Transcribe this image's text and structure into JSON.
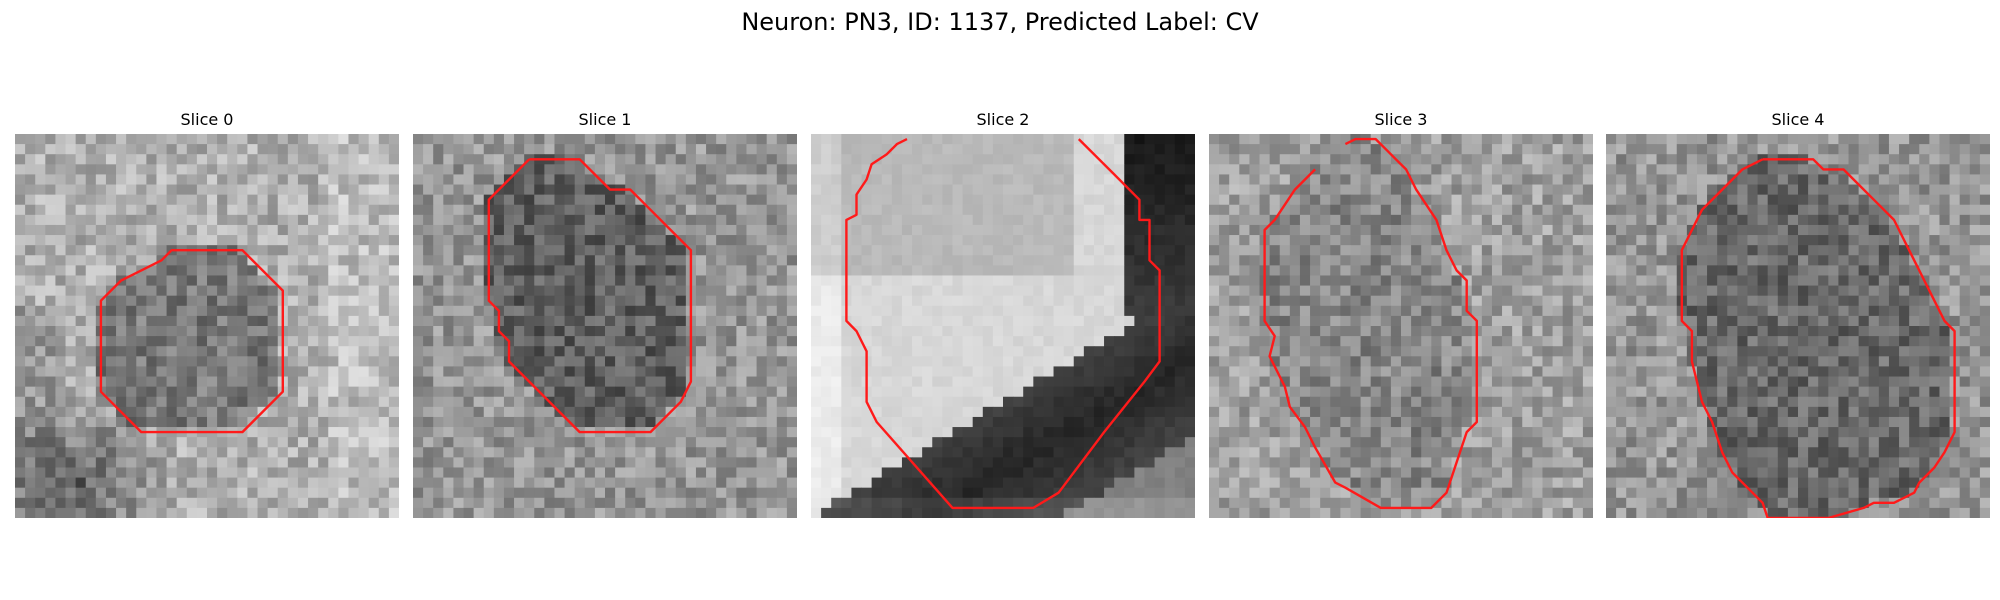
{
  "figure": {
    "title": "Neuron: PN3, ID: 1137, Predicted Label: CV"
  },
  "colors": {
    "outline": "#ff1a1a"
  },
  "panels": [
    {
      "title": "Slice 0",
      "seed": 11,
      "style": "slice0",
      "outline": [
        [
          17.5,
          11.5
        ],
        [
          22.5,
          11.5
        ],
        [
          26.5,
          15.5
        ],
        [
          26.5,
          25.5
        ],
        [
          22.5,
          29.5
        ],
        [
          12.5,
          29.5
        ],
        [
          8.5,
          25.5
        ],
        [
          8.5,
          16.5
        ],
        [
          10.5,
          14.5
        ],
        [
          12.5,
          13.5
        ],
        [
          14.5,
          12.5
        ],
        [
          15.5,
          11.5
        ]
      ]
    },
    {
      "title": "Slice 1",
      "seed": 23,
      "style": "slice1",
      "outline": [
        [
          11.5,
          2.5
        ],
        [
          16.5,
          2.5
        ],
        [
          18.5,
          4.5
        ],
        [
          19.5,
          5.5
        ],
        [
          21.5,
          5.5
        ],
        [
          23.5,
          7.5
        ],
        [
          26.5,
          10.5
        ],
        [
          27.5,
          11.5
        ],
        [
          27.5,
          24.5
        ],
        [
          26.5,
          26.5
        ],
        [
          23.5,
          29.5
        ],
        [
          16.5,
          29.5
        ],
        [
          12.5,
          25.5
        ],
        [
          9.5,
          22.5
        ],
        [
          9.5,
          20.5
        ],
        [
          8.5,
          19.5
        ],
        [
          8.5,
          17.5
        ],
        [
          7.5,
          16.5
        ],
        [
          7.5,
          6.5
        ]
      ]
    },
    {
      "title": "Slice 2",
      "seed": 37,
      "style": "slice2",
      "outline": [
        [
          9.5,
          0.5
        ],
        [
          8.5,
          1.0
        ],
        [
          7.5,
          2.0
        ],
        [
          6.0,
          3.0
        ],
        [
          5.5,
          4.5
        ],
        [
          4.5,
          6.0
        ],
        [
          4.5,
          8.0
        ],
        [
          3.5,
          8.5
        ],
        [
          3.5,
          18.5
        ],
        [
          4.5,
          19.5
        ],
        [
          5.5,
          21.5
        ],
        [
          5.5,
          26.5
        ],
        [
          6.5,
          28.5
        ],
        [
          14.0,
          37.0
        ],
        [
          16.0,
          37.0
        ],
        [
          22.0,
          37.0
        ],
        [
          24.5,
          35.5
        ],
        [
          29.0,
          29.5
        ],
        [
          33.0,
          24.5
        ],
        [
          34.5,
          22.5
        ],
        [
          34.5,
          13.5
        ],
        [
          33.5,
          12.5
        ],
        [
          33.5,
          8.5
        ],
        [
          32.5,
          8.5
        ],
        [
          32.5,
          6.5
        ],
        [
          30.0,
          4.0
        ],
        [
          26.5,
          0.5
        ]
      ]
    },
    {
      "title": "Slice 3",
      "seed": 53,
      "style": "slice3",
      "outline": [
        [
          13.5,
          1.0
        ],
        [
          14.5,
          0.5
        ],
        [
          16.5,
          0.5
        ],
        [
          17.5,
          1.5
        ],
        [
          18.5,
          2.5
        ],
        [
          19.5,
          3.5
        ],
        [
          20.5,
          5.5
        ],
        [
          22.5,
          8.5
        ],
        [
          23.5,
          11.5
        ],
        [
          24.5,
          13.5
        ],
        [
          25.5,
          14.5
        ],
        [
          25.5,
          17.5
        ],
        [
          26.5,
          18.5
        ],
        [
          26.5,
          28.5
        ],
        [
          25.5,
          29.5
        ],
        [
          24.5,
          32.5
        ],
        [
          23.5,
          35.5
        ],
        [
          22.0,
          37.0
        ],
        [
          17.0,
          37.0
        ],
        [
          13.5,
          35.0
        ],
        [
          12.5,
          34.5
        ],
        [
          10.5,
          31.0
        ],
        [
          9.5,
          29.0
        ],
        [
          8.0,
          27.0
        ],
        [
          7.5,
          25.0
        ],
        [
          6.0,
          22.0
        ],
        [
          6.5,
          20.0
        ],
        [
          5.5,
          18.5
        ],
        [
          5.5,
          9.5
        ],
        [
          6.5,
          8.5
        ],
        [
          8.5,
          5.5
        ],
        [
          10.5,
          3.5
        ]
      ]
    },
    {
      "title": "Slice 4",
      "seed": 71,
      "style": "slice4",
      "outline": [
        [
          15.5,
          2.5
        ],
        [
          20.5,
          2.5
        ],
        [
          21.5,
          3.5
        ],
        [
          23.5,
          3.5
        ],
        [
          24.5,
          4.5
        ],
        [
          26.5,
          6.5
        ],
        [
          28.5,
          8.5
        ],
        [
          29.5,
          10.5
        ],
        [
          30.5,
          12.5
        ],
        [
          31.5,
          14.5
        ],
        [
          32.5,
          16.5
        ],
        [
          33.5,
          18.5
        ],
        [
          34.5,
          19.5
        ],
        [
          34.5,
          29.5
        ],
        [
          33.5,
          31.5
        ],
        [
          32.5,
          33.0
        ],
        [
          31.0,
          34.5
        ],
        [
          30.5,
          35.5
        ],
        [
          28.5,
          36.5
        ],
        [
          26.5,
          36.5
        ],
        [
          25.5,
          37.0
        ],
        [
          22.0,
          38.0
        ],
        [
          16.0,
          38.0
        ],
        [
          15.5,
          36.5
        ],
        [
          14.5,
          35.5
        ],
        [
          12.5,
          33.5
        ],
        [
          11.5,
          31.5
        ],
        [
          10.5,
          28.5
        ],
        [
          9.5,
          26.5
        ],
        [
          8.5,
          22.5
        ],
        [
          8.5,
          19.5
        ],
        [
          7.5,
          18.5
        ],
        [
          7.5,
          11.5
        ],
        [
          8.5,
          9.5
        ],
        [
          9.5,
          7.5
        ],
        [
          11.5,
          5.5
        ],
        [
          13.5,
          3.5
        ]
      ]
    }
  ]
}
